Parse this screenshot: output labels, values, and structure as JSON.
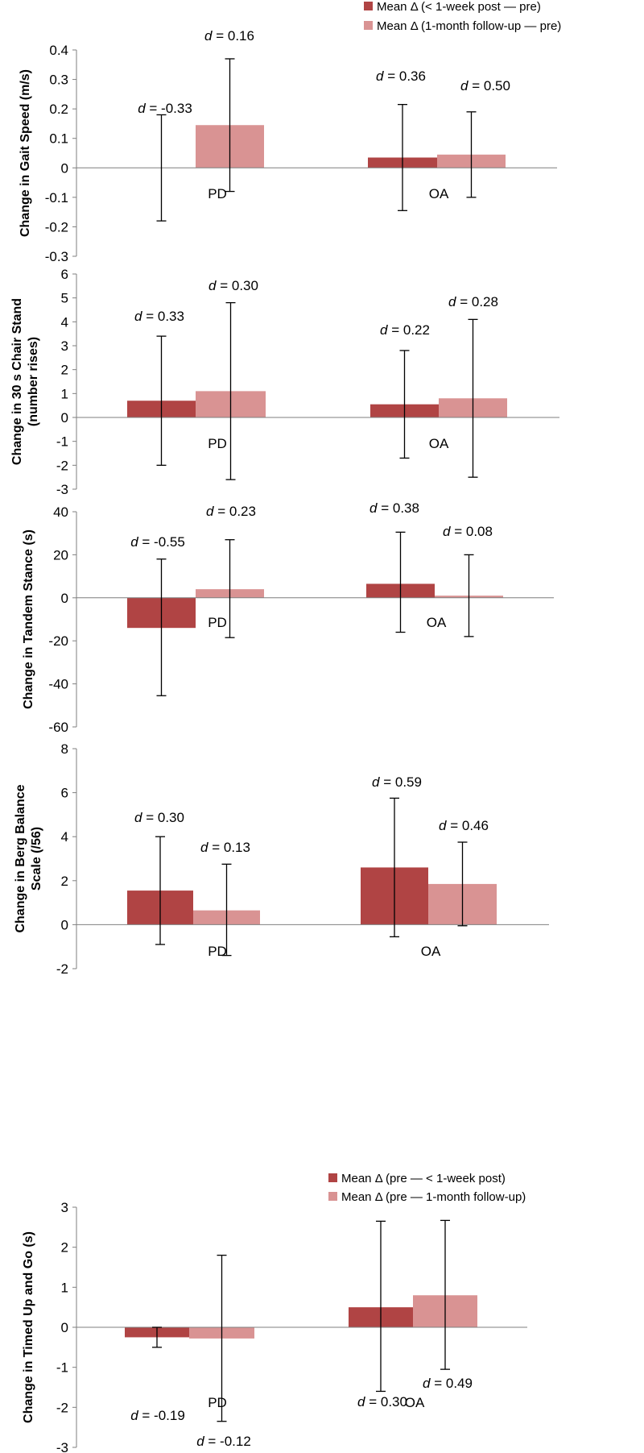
{
  "colors": {
    "post": "#b04444",
    "follow": "#d99393",
    "axis": "#7f7f7f",
    "err": "#000000"
  },
  "legend_top": [
    "Mean Δ (< 1-week post — pre)",
    "Mean Δ (1-month follow-up — pre)"
  ],
  "legend_bottom": [
    "Mean Δ (pre — < 1-week post)",
    "Mean Δ (pre — 1-month follow-up)"
  ],
  "chart_data": [
    {
      "type": "bar",
      "ylabel": [
        "Change in Gait Speed (m/s)"
      ],
      "ylim": [
        -0.3,
        0.4
      ],
      "yticks": [
        "0.4",
        "0.3",
        "0.2",
        "0.1",
        "0",
        "-0.1",
        "-0.2",
        "-0.3"
      ],
      "categories": [
        "PD",
        "OA"
      ],
      "series": [
        {
          "name": "Mean Δ (< 1-week post — pre)",
          "values": [
            0.0,
            0.035
          ],
          "err_low": [
            -0.18,
            -0.145
          ],
          "err_high": [
            0.18,
            0.215
          ],
          "d": [
            "d = -0.33",
            "d = 0.36"
          ]
        },
        {
          "name": "Mean Δ (1-month follow-up — pre)",
          "values": [
            0.145,
            0.045
          ],
          "err_low": [
            -0.08,
            -0.1
          ],
          "err_high": [
            0.37,
            0.19
          ],
          "d": [
            "d = 0.16",
            "d = 0.50"
          ]
        }
      ]
    },
    {
      "type": "bar",
      "ylabel": [
        "Change in 30 s Chair Stand",
        "(number rises)"
      ],
      "ylim": [
        -3,
        6
      ],
      "yticks": [
        "6",
        "5",
        "4",
        "3",
        "2",
        "1",
        "0",
        "-1",
        "-2",
        "-3"
      ],
      "categories": [
        "PD",
        "OA"
      ],
      "series": [
        {
          "name": "Mean Δ (< 1-week post — pre)",
          "values": [
            0.7,
            0.55
          ],
          "err_low": [
            -2.0,
            -1.7
          ],
          "err_high": [
            3.4,
            2.8
          ],
          "d": [
            "d = 0.33",
            "d = 0.22"
          ]
        },
        {
          "name": "Mean Δ (1-month follow-up — pre)",
          "values": [
            1.1,
            0.8
          ],
          "err_low": [
            -2.6,
            -2.5
          ],
          "err_high": [
            4.8,
            4.1
          ],
          "d": [
            "d = 0.30",
            "d = 0.28"
          ]
        }
      ]
    },
    {
      "type": "bar",
      "ylabel": [
        "Change in Tandem Stance (s)"
      ],
      "ylim": [
        -60,
        40
      ],
      "yticks": [
        "40",
        "20",
        "0",
        "-20",
        "-40",
        "-60"
      ],
      "categories": [
        "PD",
        "OA"
      ],
      "series": [
        {
          "name": "Mean Δ (< 1-week post — pre)",
          "values": [
            -14,
            6.5
          ],
          "err_low": [
            -45.5,
            -16
          ],
          "err_high": [
            18,
            30.5
          ],
          "d": [
            "d = -0.55",
            "d = 0.38"
          ]
        },
        {
          "name": "Mean Δ (1-month follow-up — pre)",
          "values": [
            4,
            1
          ],
          "err_low": [
            -18.5,
            -18
          ],
          "err_high": [
            27,
            20
          ],
          "d": [
            "d = 0.23",
            "d = 0.08"
          ]
        }
      ]
    },
    {
      "type": "bar",
      "ylabel": [
        "Change in Berg Balance",
        "Scale (/56)"
      ],
      "ylim": [
        -2,
        8
      ],
      "yticks": [
        "8",
        "6",
        "4",
        "2",
        "0",
        "-2"
      ],
      "categories": [
        "PD",
        "OA"
      ],
      "series": [
        {
          "name": "Mean Δ (< 1-week post — pre)",
          "values": [
            1.55,
            2.6
          ],
          "err_low": [
            -0.9,
            -0.55
          ],
          "err_high": [
            4.0,
            5.75
          ],
          "d": [
            "d = 0.30",
            "d = 0.59"
          ]
        },
        {
          "name": "Mean Δ (1-month follow-up — pre)",
          "values": [
            0.65,
            1.85
          ],
          "err_low": [
            -1.4,
            -0.05
          ],
          "err_high": [
            2.75,
            3.75
          ],
          "d": [
            "d = 0.13",
            "d = 0.46"
          ]
        }
      ]
    },
    {
      "type": "bar",
      "ylabel": [
        "Change in Timed Up and Go (s)"
      ],
      "ylim": [
        -3,
        3
      ],
      "yticks": [
        "3",
        "2",
        "1",
        "0",
        "-1",
        "-2",
        "-3"
      ],
      "categories": [
        "PD",
        "OA"
      ],
      "series": [
        {
          "name": "Mean Δ (pre — < 1-week post)",
          "values": [
            -0.25,
            0.5
          ],
          "err_low": [
            -0.5,
            -1.6
          ],
          "err_high": [
            0.0,
            2.65
          ],
          "d": [
            "d = -0.19",
            "d = 0.30"
          ]
        },
        {
          "name": "Mean Δ (pre — 1-month follow-up)",
          "values": [
            -0.28,
            0.8
          ],
          "err_low": [
            -2.35,
            -1.05
          ],
          "err_high": [
            1.8,
            2.67
          ],
          "d": [
            "d = -0.12",
            "d =  0.49"
          ]
        }
      ]
    }
  ]
}
